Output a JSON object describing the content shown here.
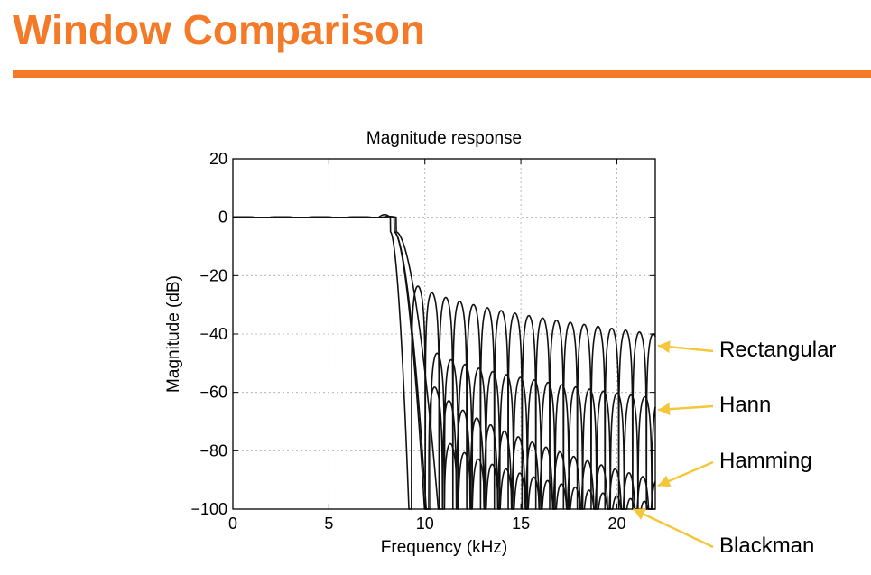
{
  "slide": {
    "title": "Window Comparison",
    "accent_color": "#f47a28",
    "arrow_color": "#f5c53a"
  },
  "chart_data": {
    "type": "line",
    "title": "Magnitude response",
    "xlabel": "Frequency (kHz)",
    "ylabel": "Magnitude (dB)",
    "xlim": [
      0,
      22
    ],
    "ylim": [
      -100,
      20
    ],
    "xticks": [
      "0",
      "5",
      "10",
      "15",
      "20"
    ],
    "yticks": [
      "20",
      "0",
      "−20",
      "−40",
      "−60",
      "−80",
      "−100"
    ],
    "grid": true,
    "series": [
      {
        "name": "Rectangular",
        "cutoff_khz": 8.2,
        "first_null_khz": 9.3,
        "lobe_spacing_khz": 0.72,
        "first_sidelobe_db": -21,
        "final_sidelobe_db": -40
      },
      {
        "name": "Hann",
        "cutoff_khz": 8.4,
        "first_null_khz": 10.3,
        "lobe_spacing_khz": 0.72,
        "first_sidelobe_db": -44,
        "final_sidelobe_db": -62
      },
      {
        "name": "Hamming",
        "cutoff_khz": 8.4,
        "first_null_khz": 10.2,
        "lobe_spacing_khz": 0.72,
        "first_sidelobe_db": -53,
        "final_sidelobe_db": -90
      },
      {
        "name": "Blackman",
        "cutoff_khz": 8.5,
        "first_null_khz": 11.0,
        "lobe_spacing_khz": 0.72,
        "first_sidelobe_db": -74,
        "final_sidelobe_db": -98
      }
    ],
    "annotations": [
      {
        "label": "Rectangular",
        "y_db": -44,
        "x_khz": 22
      },
      {
        "label": "Hann",
        "y_db": -66,
        "x_khz": 22
      },
      {
        "label": "Hamming",
        "y_db": -92,
        "x_khz": 22
      },
      {
        "label": "Blackman",
        "y_db": -100,
        "x_khz": 20.7
      }
    ]
  }
}
